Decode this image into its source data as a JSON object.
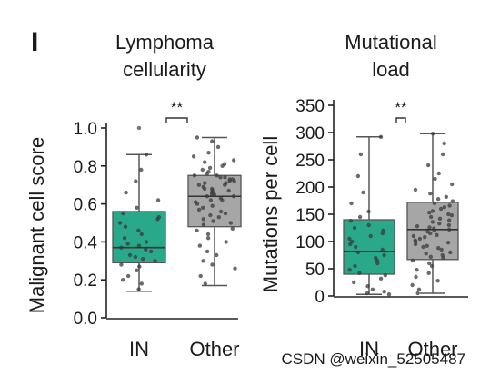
{
  "panel_label": "I",
  "watermark": "CSDN @weixin_52505487",
  "colors": {
    "in_box": "#2aa88a",
    "other_box": "#a6a6a6",
    "points": "#3a3a3a",
    "axis": "#222222"
  },
  "chart_data": [
    {
      "type": "box",
      "title_lines": [
        "Lymphoma",
        "cellularity"
      ],
      "xlabel": "",
      "ylabel": "Malignant cell score",
      "ylim": [
        0,
        1.0
      ],
      "yticks": [
        "0.0",
        "0.2",
        "0.4",
        "0.6",
        "0.8",
        "1.0"
      ],
      "categories": [
        "IN",
        "Other"
      ],
      "significance": "**",
      "boxes": [
        {
          "name": "IN",
          "color": "#2aa88a",
          "whisker_low": 0.14,
          "q1": 0.29,
          "median": 0.37,
          "q3": 0.56,
          "whisker_high": 0.86,
          "outliers": [
            1.0
          ],
          "points": [
            0.15,
            0.18,
            0.2,
            0.22,
            0.25,
            0.27,
            0.28,
            0.3,
            0.31,
            0.32,
            0.33,
            0.35,
            0.36,
            0.37,
            0.38,
            0.39,
            0.4,
            0.42,
            0.44,
            0.46,
            0.48,
            0.5,
            0.52,
            0.53,
            0.55,
            0.58,
            0.62,
            0.66,
            0.72,
            0.78,
            0.86
          ]
        },
        {
          "name": "Other",
          "color": "#a6a6a6",
          "whisker_low": 0.17,
          "q1": 0.48,
          "median": 0.64,
          "q3": 0.75,
          "whisker_high": 0.95,
          "outliers": [],
          "points": [
            0.18,
            0.22,
            0.26,
            0.28,
            0.3,
            0.33,
            0.35,
            0.38,
            0.4,
            0.42,
            0.44,
            0.46,
            0.47,
            0.49,
            0.5,
            0.51,
            0.52,
            0.53,
            0.54,
            0.55,
            0.56,
            0.57,
            0.58,
            0.59,
            0.6,
            0.61,
            0.62,
            0.62,
            0.63,
            0.64,
            0.64,
            0.65,
            0.65,
            0.66,
            0.67,
            0.67,
            0.68,
            0.68,
            0.69,
            0.7,
            0.7,
            0.71,
            0.71,
            0.72,
            0.72,
            0.73,
            0.73,
            0.74,
            0.74,
            0.75,
            0.75,
            0.76,
            0.77,
            0.78,
            0.79,
            0.8,
            0.81,
            0.82,
            0.83,
            0.85,
            0.87,
            0.9,
            0.93,
            0.95
          ]
        }
      ]
    },
    {
      "type": "box",
      "title_lines": [
        "Mutational",
        "load"
      ],
      "xlabel": "",
      "ylabel": "Mutations per cell",
      "ylim": [
        0,
        350
      ],
      "yticks": [
        "0",
        "50",
        "100",
        "150",
        "200",
        "250",
        "300",
        "350"
      ],
      "categories": [
        "IN",
        "Other"
      ],
      "significance": "**",
      "boxes": [
        {
          "name": "IN",
          "color": "#2aa88a",
          "whisker_low": 3,
          "q1": 40,
          "median": 82,
          "q3": 140,
          "whisker_high": 292,
          "outliers": [],
          "points": [
            3,
            5,
            8,
            12,
            18,
            25,
            32,
            38,
            42,
            48,
            55,
            60,
            65,
            70,
            75,
            80,
            85,
            90,
            95,
            100,
            105,
            110,
            115,
            120,
            125,
            130,
            138,
            145,
            155,
            170,
            190,
            220,
            260,
            292
          ]
        },
        {
          "name": "Other",
          "color": "#a6a6a6",
          "whisker_low": 5,
          "q1": 67,
          "median": 122,
          "q3": 172,
          "whisker_high": 298,
          "outliers": [],
          "points": [
            5,
            12,
            20,
            28,
            35,
            42,
            48,
            55,
            60,
            65,
            70,
            72,
            75,
            78,
            80,
            85,
            88,
            90,
            92,
            95,
            98,
            100,
            102,
            105,
            108,
            110,
            112,
            115,
            118,
            120,
            122,
            124,
            126,
            128,
            130,
            133,
            136,
            139,
            142,
            145,
            148,
            150,
            153,
            156,
            160,
            163,
            166,
            170,
            174,
            178,
            182,
            188,
            195,
            205,
            215,
            225,
            240,
            260,
            280,
            298
          ]
        }
      ]
    }
  ]
}
